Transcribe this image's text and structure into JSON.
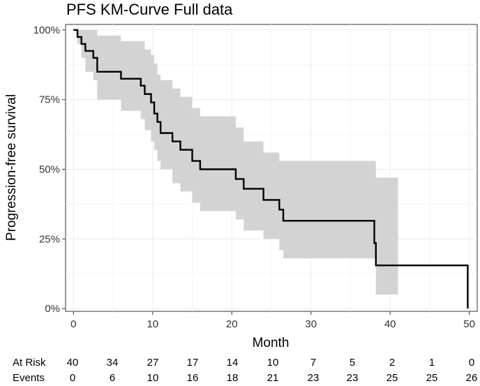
{
  "chart_data": {
    "type": "line",
    "subtype": "kaplan-meier",
    "title": "PFS KM-Curve Full data",
    "xlabel": "Month",
    "ylabel": "Progression-free survival",
    "xlim": [
      -1,
      51
    ],
    "ylim": [
      -0.01,
      1.02
    ],
    "x_ticks": [
      0,
      10,
      20,
      30,
      40,
      50
    ],
    "x_tick_labels": [
      "0",
      "10",
      "20",
      "30",
      "40",
      "50"
    ],
    "y_ticks": [
      0,
      0.25,
      0.5,
      0.75,
      1.0
    ],
    "y_tick_labels": [
      "0%",
      "25%",
      "50%",
      "75%",
      "100%"
    ],
    "grid": true,
    "series": [
      {
        "name": "Survival estimate",
        "color": "#000000",
        "step_times": [
          0,
          0.5,
          1.0,
          1.5,
          2.5,
          3.0,
          6.0,
          8.5,
          9.0,
          9.8,
          10.2,
          10.6,
          11.0,
          12.5,
          13.5,
          15.0,
          16.0,
          20.5,
          21.5,
          24.0,
          26.0,
          26.5,
          38.0,
          38.2,
          49.8
        ],
        "step_values": [
          1.0,
          0.975,
          0.95,
          0.925,
          0.9,
          0.85,
          0.825,
          0.8,
          0.77,
          0.74,
          0.7,
          0.67,
          0.63,
          0.6,
          0.57,
          0.53,
          0.5,
          0.465,
          0.43,
          0.39,
          0.355,
          0.315,
          0.235,
          0.155,
          0.0
        ]
      },
      {
        "name": "95% confidence band",
        "color": "#d3d3d3",
        "upper": [
          1.0,
          1.0,
          1.0,
          1.0,
          1.0,
          0.98,
          0.96,
          0.96,
          0.93,
          0.91,
          0.88,
          0.84,
          0.82,
          0.79,
          0.76,
          0.72,
          0.69,
          0.65,
          0.6,
          0.56,
          0.53,
          0.53,
          0.53,
          0.47,
          0.47
        ],
        "lower": [
          1.0,
          0.95,
          0.9,
          0.85,
          0.82,
          0.75,
          0.71,
          0.68,
          0.64,
          0.6,
          0.57,
          0.53,
          0.5,
          0.45,
          0.42,
          0.38,
          0.35,
          0.32,
          0.28,
          0.25,
          0.21,
          0.18,
          0.18,
          0.05,
          0.05
        ],
        "band_end": 41
      }
    ],
    "risk_table": {
      "times": [
        0,
        5,
        10,
        15,
        20,
        25,
        30,
        35,
        40,
        45,
        50
      ],
      "rows": [
        {
          "label": "At Risk",
          "values": [
            "40",
            "34",
            "27",
            "17",
            "14",
            "10",
            "7",
            "5",
            "2",
            "1",
            "0"
          ]
        },
        {
          "label": "Events",
          "values": [
            "0",
            "6",
            "10",
            "16",
            "18",
            "21",
            "23",
            "23",
            "25",
            "25",
            "26"
          ]
        }
      ]
    }
  }
}
